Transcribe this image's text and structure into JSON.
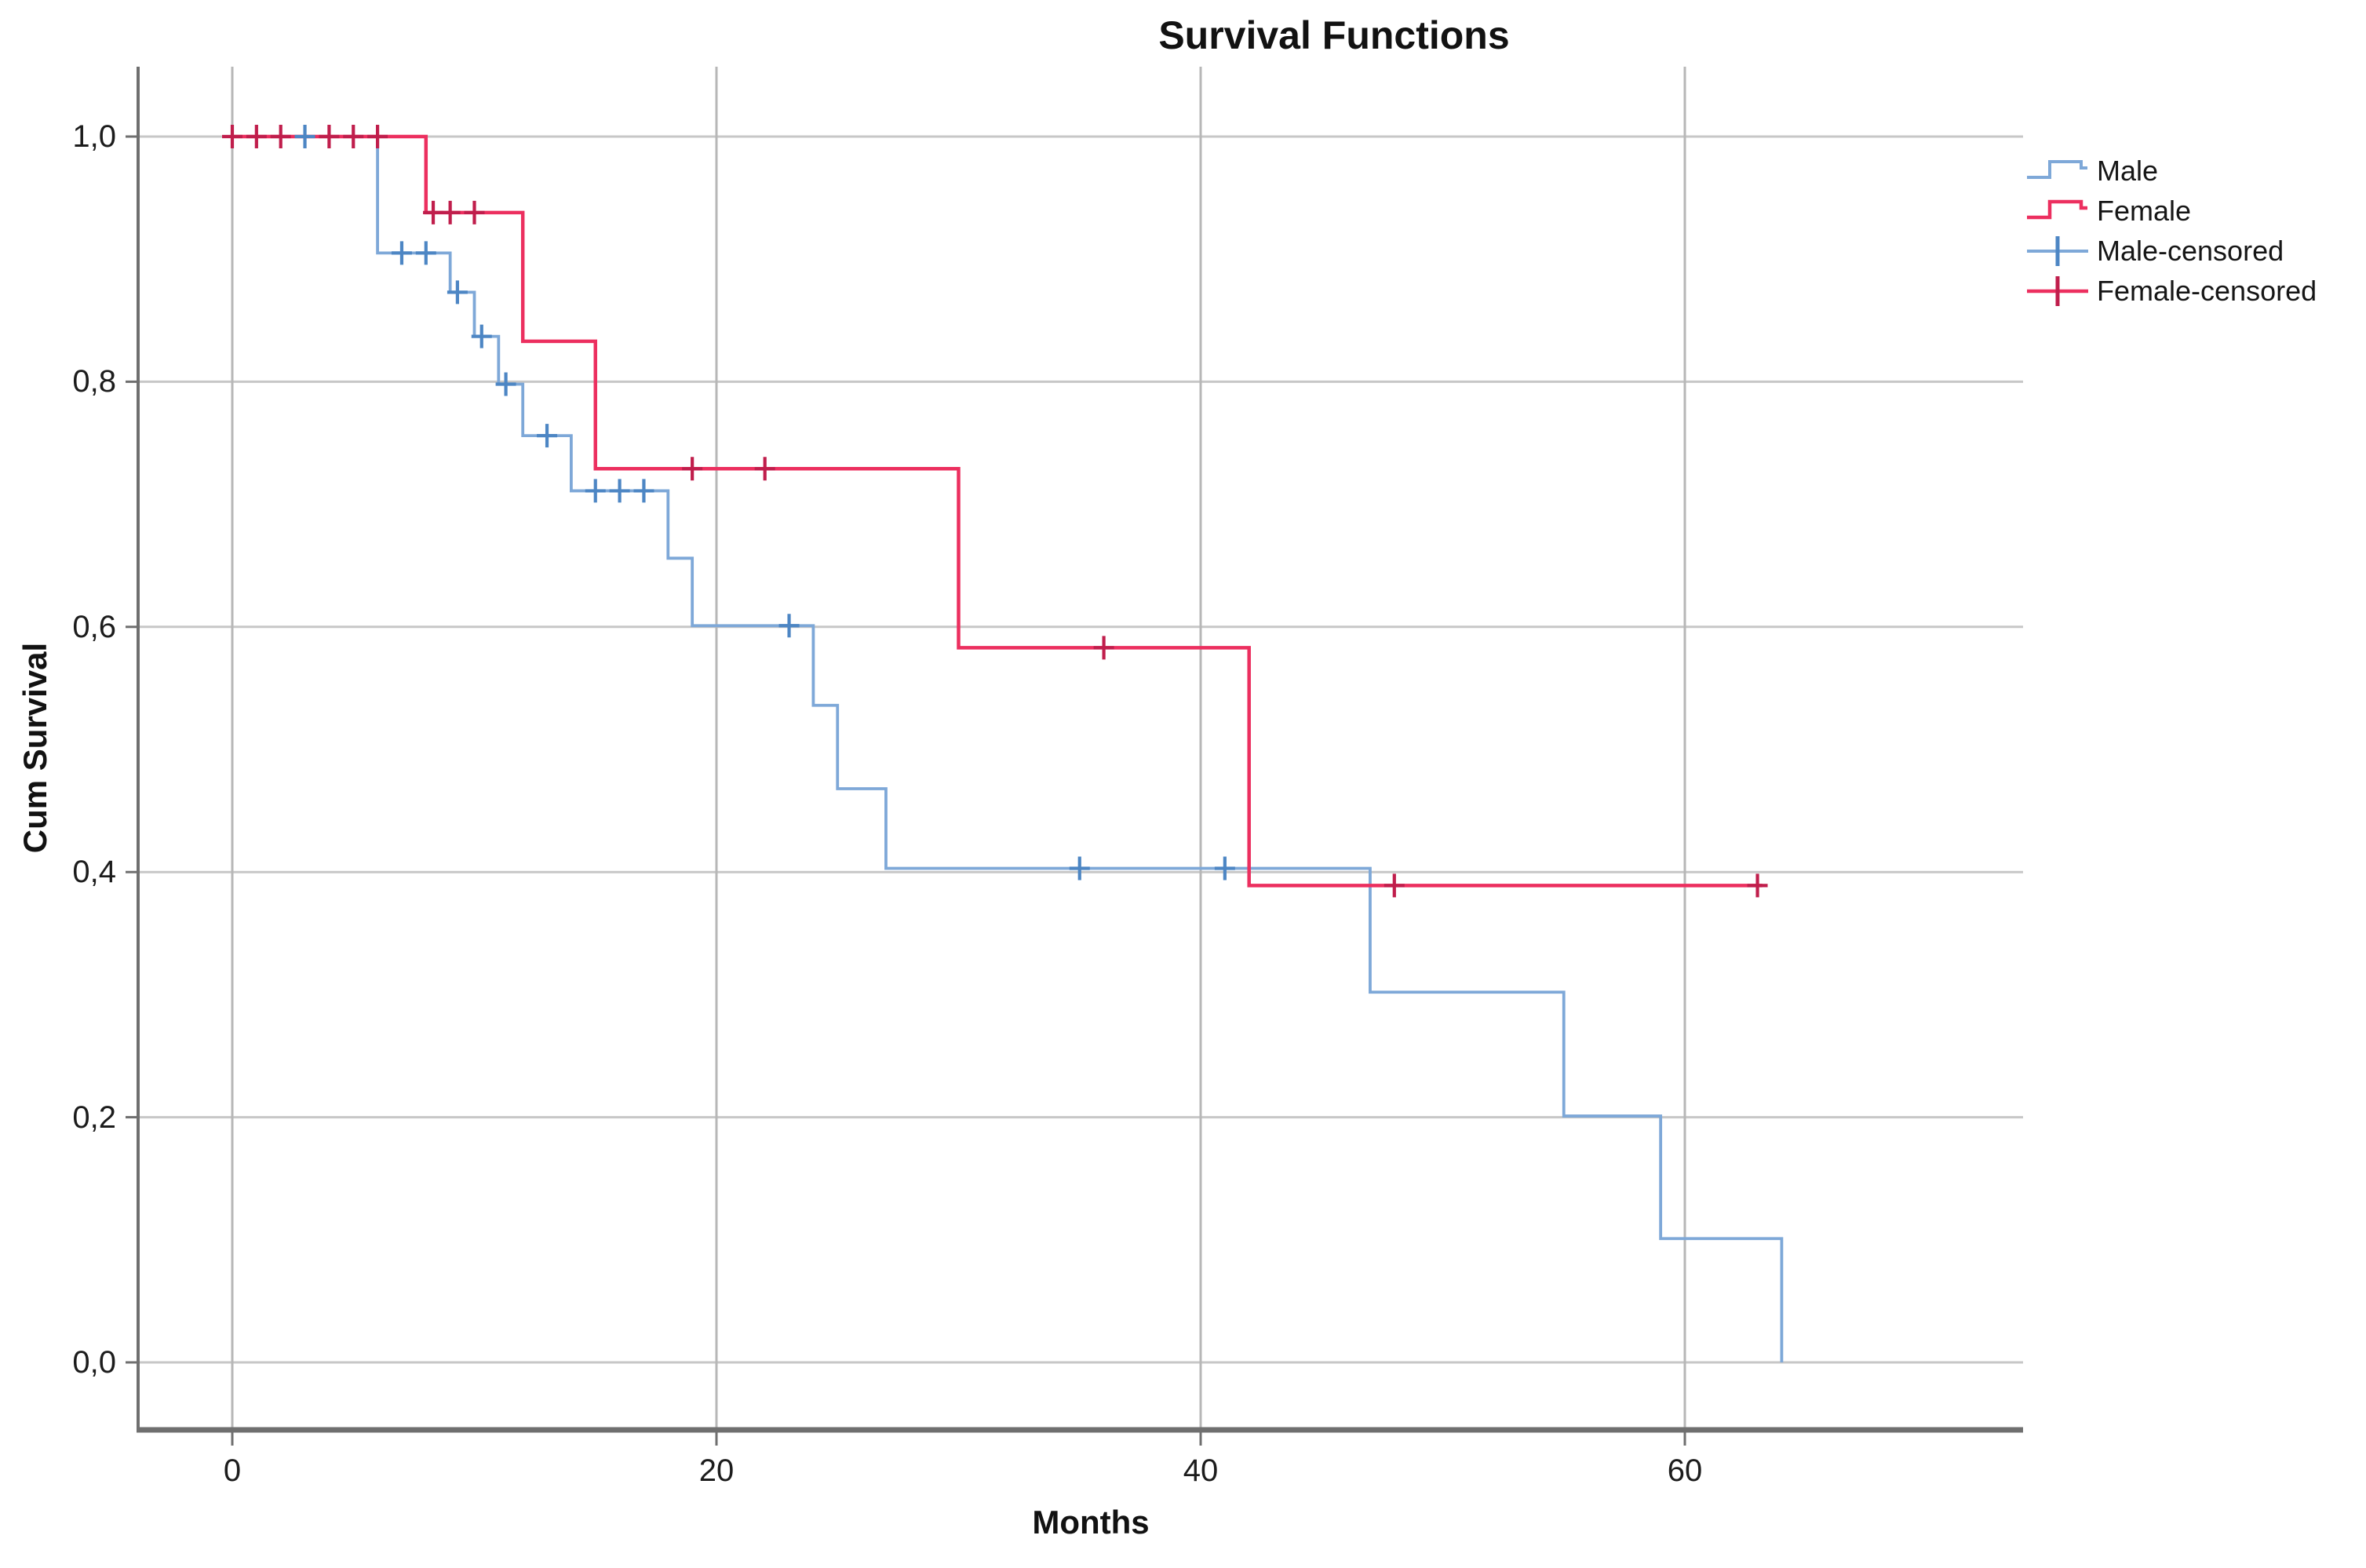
{
  "title": "Survival Functions",
  "axes": {
    "x_label": "Months",
    "y_label": "Cum Survival",
    "x_tick_labels": [
      "0",
      "20",
      "40",
      "60"
    ],
    "y_tick_labels": [
      "1,0",
      "0,8",
      "0,6",
      "0,4",
      "0,2",
      "0,0"
    ]
  },
  "legend": {
    "items": [
      {
        "label": "Male",
        "type": "step-line",
        "color": "#7ea8d8"
      },
      {
        "label": "Female",
        "type": "step-line",
        "color": "#ec2f5f"
      },
      {
        "label": "Male-censored",
        "type": "censor-mark",
        "color": "#7ea8d8",
        "mark_color": "#4d86c4"
      },
      {
        "label": "Female-censored",
        "type": "censor-mark",
        "color": "#ec2f5f",
        "mark_color": "#c01e4c"
      }
    ]
  },
  "chart_data": {
    "type": "line",
    "subtype": "kaplan_meier_step",
    "title": "Survival Functions",
    "xlabel": "Months",
    "ylabel": "Cum Survival",
    "xlim": [
      -3.9,
      74
    ],
    "ylim": [
      -0.056,
      1.057
    ],
    "x_ticks": [
      0,
      20,
      40,
      60
    ],
    "y_ticks": [
      1.0,
      0.8,
      0.6,
      0.4,
      0.2,
      0.0
    ],
    "grid": true,
    "legend_position": "right",
    "series": [
      {
        "name": "Male",
        "color": "#7ea8d8",
        "censor_color": "#4d86c4",
        "steps": [
          [
            0,
            1.0
          ],
          [
            6,
            0.905
          ],
          [
            9,
            0.873
          ],
          [
            10,
            0.837
          ],
          [
            11,
            0.798
          ],
          [
            12,
            0.756
          ],
          [
            14,
            0.711
          ],
          [
            18,
            0.656
          ],
          [
            19,
            0.601
          ],
          [
            24,
            0.536
          ],
          [
            25,
            0.468
          ],
          [
            27,
            0.403
          ],
          [
            47,
            0.302
          ],
          [
            55,
            0.201
          ],
          [
            59,
            0.101
          ],
          [
            64,
            0.0
          ]
        ],
        "censored": [
          [
            3,
            1.0
          ],
          [
            7,
            0.905
          ],
          [
            8,
            0.905
          ],
          [
            9.3,
            0.873
          ],
          [
            10.3,
            0.837
          ],
          [
            11.3,
            0.798
          ],
          [
            13,
            0.756
          ],
          [
            15,
            0.711
          ],
          [
            16,
            0.711
          ],
          [
            17,
            0.711
          ],
          [
            23,
            0.601
          ],
          [
            35,
            0.403
          ],
          [
            41,
            0.403
          ]
        ]
      },
      {
        "name": "Female",
        "color": "#ec2f5f",
        "censor_color": "#c01e4c",
        "steps": [
          [
            0,
            1.0
          ],
          [
            8,
            0.938
          ],
          [
            12,
            0.833
          ],
          [
            15,
            0.729
          ],
          [
            30,
            0.583
          ],
          [
            42,
            0.389
          ],
          [
            63.2,
            0.389
          ]
        ],
        "censored": [
          [
            0,
            1.0
          ],
          [
            1,
            1.0
          ],
          [
            2,
            1.0
          ],
          [
            4,
            1.0
          ],
          [
            5,
            1.0
          ],
          [
            6,
            1.0
          ],
          [
            8.3,
            0.938
          ],
          [
            9,
            0.938
          ],
          [
            10,
            0.938
          ],
          [
            19,
            0.729
          ],
          [
            22,
            0.729
          ],
          [
            36,
            0.583
          ],
          [
            48,
            0.389
          ],
          [
            63,
            0.389
          ]
        ]
      }
    ]
  },
  "style": {
    "grid_color": "#c7c7c7",
    "axis_color": "#6f6f6f",
    "text_color": "#111111",
    "background": "#ffffff"
  }
}
